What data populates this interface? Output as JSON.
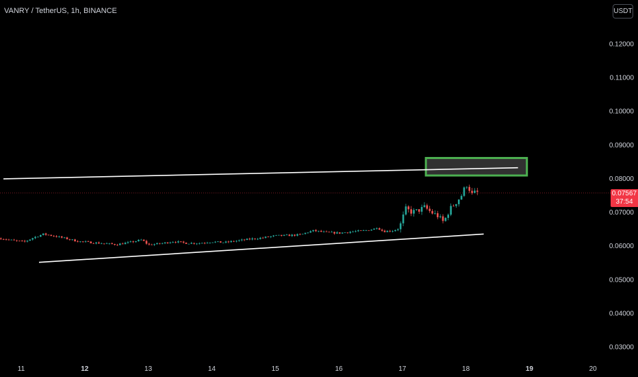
{
  "header": {
    "title": "VANRY / TetherUS, 1h, BINANCE"
  },
  "currency_button": {
    "label": "USDT"
  },
  "price_tag": {
    "price": "0.07567",
    "countdown": "37:54",
    "color": "#f23645"
  },
  "colors": {
    "up": "#26a69a",
    "down": "#ef5350",
    "lines": "#ffffff",
    "box_border": "#4caf50",
    "box_fill": "#3a3a3a"
  },
  "chart_data": {
    "type": "candlestick",
    "y_axis": {
      "ticks": [
        0.12,
        0.11,
        0.1,
        0.09,
        0.08,
        0.07,
        0.06,
        0.05,
        0.04,
        0.03
      ],
      "tick_labels": [
        "0.12000",
        "0.11000",
        "0.10000",
        "0.09000",
        "0.08000",
        "0.07000",
        "0.06000",
        "0.05000",
        "0.04000",
        "0.03000"
      ],
      "range": [
        0.027,
        0.131
      ]
    },
    "x_axis": {
      "tick_labels": [
        "11",
        "12",
        "13",
        "14",
        "15",
        "16",
        "17",
        "18",
        "19",
        "20"
      ],
      "bold": [
        "12",
        "19"
      ],
      "tick_days": [
        11,
        12,
        13,
        14,
        15,
        16,
        17,
        18,
        19,
        20
      ],
      "range_days": [
        10.68,
        20.33
      ]
    },
    "last_price": 0.07567,
    "close_path": [
      [
        10.68,
        0.0622
      ],
      [
        10.9,
        0.0615
      ],
      [
        11.05,
        0.0612
      ],
      [
        11.2,
        0.0625
      ],
      [
        11.35,
        0.0635
      ],
      [
        11.5,
        0.063
      ],
      [
        11.7,
        0.0622
      ],
      [
        11.9,
        0.0613
      ],
      [
        12.1,
        0.061
      ],
      [
        12.3,
        0.0607
      ],
      [
        12.5,
        0.0604
      ],
      [
        12.7,
        0.061
      ],
      [
        12.9,
        0.0618
      ],
      [
        13.0,
        0.0603
      ],
      [
        13.2,
        0.0607
      ],
      [
        13.4,
        0.0613
      ],
      [
        13.6,
        0.0608
      ],
      [
        13.8,
        0.0608
      ],
      [
        14.0,
        0.0612
      ],
      [
        14.2,
        0.061
      ],
      [
        14.4,
        0.0615
      ],
      [
        14.6,
        0.062
      ],
      [
        14.8,
        0.0624
      ],
      [
        15.0,
        0.063
      ],
      [
        15.2,
        0.0631
      ],
      [
        15.4,
        0.0633
      ],
      [
        15.5,
        0.064
      ],
      [
        15.6,
        0.0645
      ],
      [
        15.8,
        0.064
      ],
      [
        16.0,
        0.0638
      ],
      [
        16.2,
        0.0642
      ],
      [
        16.4,
        0.0645
      ],
      [
        16.55,
        0.065
      ],
      [
        16.6,
        0.0655
      ],
      [
        16.7,
        0.0643
      ],
      [
        16.85,
        0.0645
      ],
      [
        16.95,
        0.0652
      ],
      [
        17.0,
        0.068
      ],
      [
        17.05,
        0.071
      ],
      [
        17.15,
        0.07
      ],
      [
        17.25,
        0.0705
      ],
      [
        17.35,
        0.0715
      ],
      [
        17.45,
        0.07
      ],
      [
        17.55,
        0.069
      ],
      [
        17.65,
        0.067
      ],
      [
        17.75,
        0.071
      ],
      [
        17.85,
        0.073
      ],
      [
        17.95,
        0.0755
      ],
      [
        18.0,
        0.0785
      ],
      [
        18.05,
        0.077
      ],
      [
        18.1,
        0.0752
      ],
      [
        18.15,
        0.076
      ],
      [
        18.22,
        0.0757
      ]
    ],
    "trendlines": [
      {
        "name": "upper",
        "from": [
          10.72,
          0.0799
        ],
        "to": [
          18.82,
          0.0832
        ]
      },
      {
        "name": "lower",
        "from": [
          11.28,
          0.0551
        ],
        "to": [
          18.28,
          0.0635
        ]
      }
    ],
    "box": {
      "x": [
        17.37,
        18.96
      ],
      "y": [
        0.0809,
        0.0861
      ]
    }
  }
}
